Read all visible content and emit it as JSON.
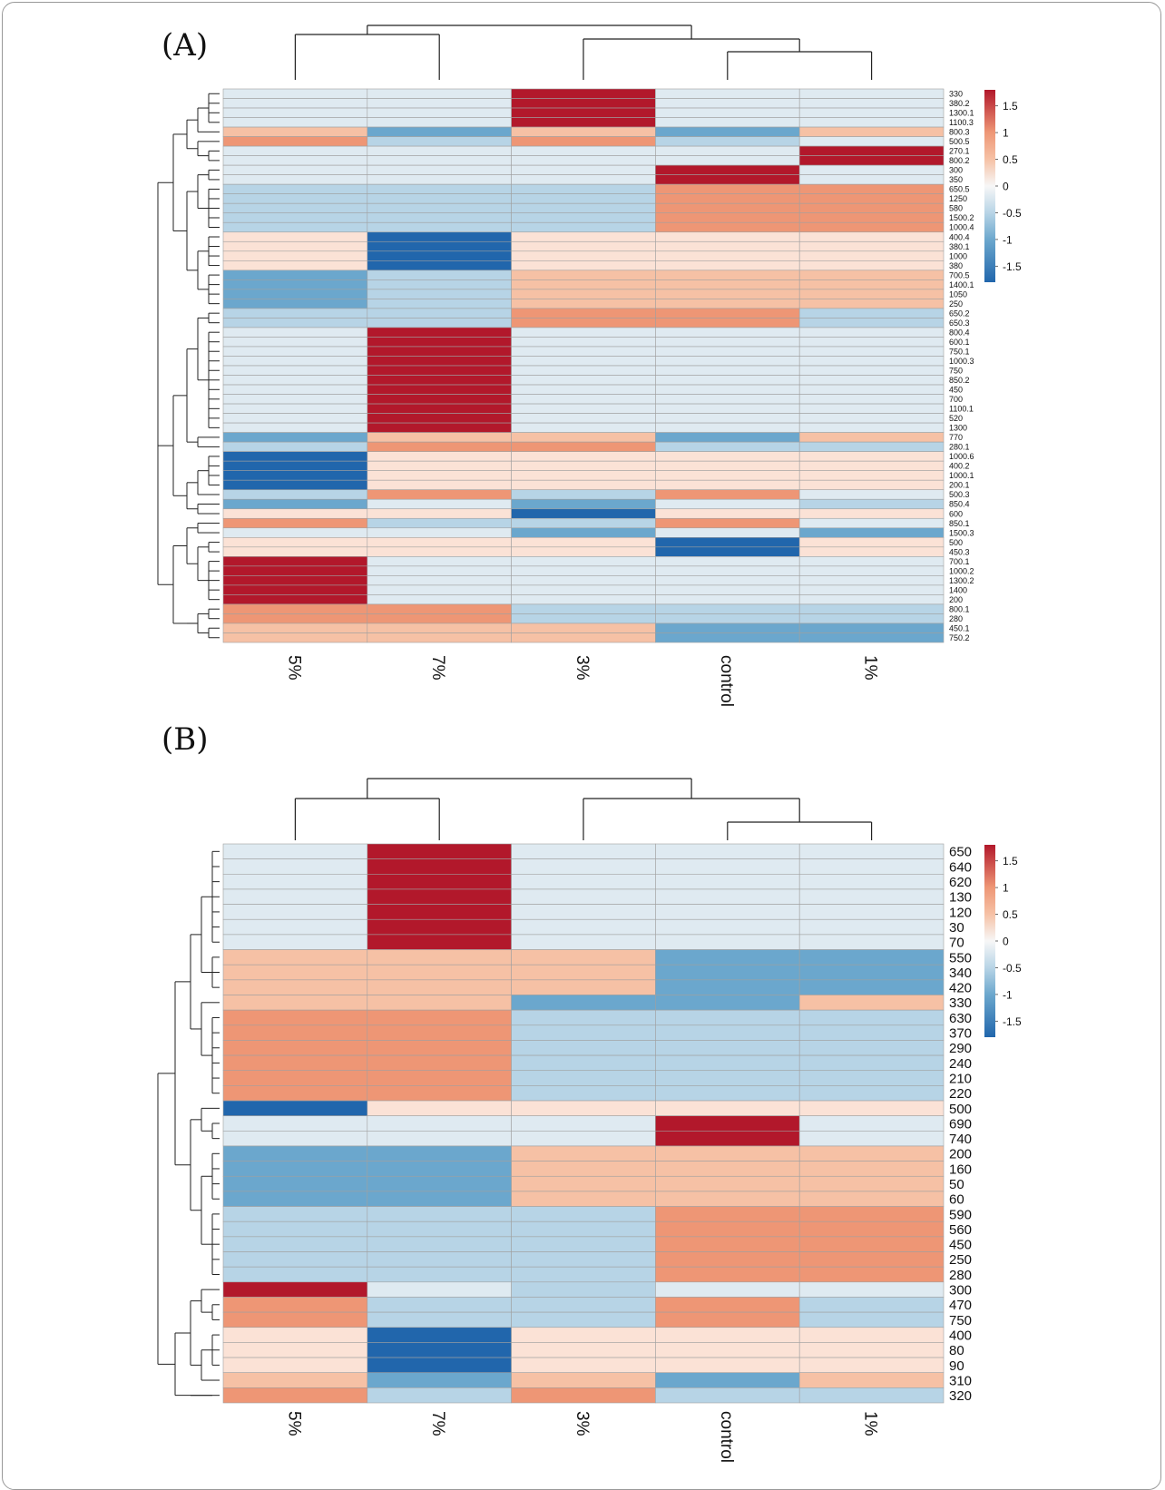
{
  "palette": {
    "-1.5": "#2166ac",
    "-1": "#6ba7cd",
    "-0.5": "#b7d4e6",
    "0": "#dfeaf1",
    "0.3": "#fbe2d6",
    "0.5": "#f6c1a5",
    "1": "#ee9675",
    "1.5": "#b2182b",
    "grid": "#a0a0a0",
    "dendrogram": "#222222"
  },
  "chart_data": [
    {
      "type": "heatmap",
      "panel_label": "(A)",
      "columns": [
        "5%",
        "7%",
        "3%",
        "control",
        "1%"
      ],
      "legend": {
        "ticks": [
          "1.5",
          "1",
          "0.5",
          "0",
          "-0.5",
          "-1",
          "-1.5"
        ],
        "range": [
          -1.8,
          1.8
        ]
      },
      "rows": [
        "330",
        "380.2",
        "1300.1",
        "1100.3",
        "800.3",
        "500.5",
        "270.1",
        "800.2",
        "300",
        "350",
        "650.5",
        "1250",
        "580",
        "1500.2",
        "1000.4",
        "400.4",
        "380.1",
        "1000",
        "380",
        "700.5",
        "1400.1",
        "1050",
        "250",
        "650.2",
        "650.3",
        "800.4",
        "600.1",
        "750.1",
        "1000.3",
        "750",
        "850.2",
        "450",
        "700",
        "1100.1",
        "520",
        "1300",
        "770",
        "280.1",
        "1000.6",
        "400.2",
        "1000.1",
        "200.1",
        "500.3",
        "850.4",
        "600",
        "850.1",
        "1500.3",
        "500",
        "450.3",
        "700.1",
        "1000.2",
        "1300.2",
        "1400",
        "200",
        "800.1",
        "280",
        "450.1",
        "750.2"
      ],
      "values": [
        [
          0,
          0,
          1.5,
          0,
          0
        ],
        [
          0,
          0,
          1.5,
          0,
          0
        ],
        [
          0,
          0,
          1.5,
          0,
          0
        ],
        [
          0,
          0,
          1.5,
          0,
          0
        ],
        [
          0.5,
          -1,
          0.5,
          -1,
          0.5
        ],
        [
          1,
          -0.5,
          1,
          -0.5,
          0
        ],
        [
          0,
          0,
          0,
          0,
          1.5
        ],
        [
          0,
          0,
          0,
          0,
          1.5
        ],
        [
          0,
          0,
          0,
          1.5,
          0
        ],
        [
          0,
          0,
          0,
          1.5,
          0
        ],
        [
          -0.5,
          -0.5,
          -0.5,
          1,
          1
        ],
        [
          -0.5,
          -0.5,
          -0.5,
          1,
          1
        ],
        [
          -0.5,
          -0.5,
          -0.5,
          1,
          1
        ],
        [
          -0.5,
          -0.5,
          -0.5,
          1,
          1
        ],
        [
          -0.5,
          -0.5,
          -0.5,
          1,
          1
        ],
        [
          0.3,
          -1.5,
          0.3,
          0.3,
          0.3
        ],
        [
          0.3,
          -1.5,
          0.3,
          0.3,
          0.3
        ],
        [
          0.3,
          -1.5,
          0.3,
          0.3,
          0.3
        ],
        [
          0.3,
          -1.5,
          0.3,
          0.3,
          0.3
        ],
        [
          -1,
          -0.5,
          0.5,
          0.5,
          0.5
        ],
        [
          -1,
          -0.5,
          0.5,
          0.5,
          0.5
        ],
        [
          -1,
          -0.5,
          0.5,
          0.5,
          0.5
        ],
        [
          -1,
          -0.5,
          0.5,
          0.5,
          0.5
        ],
        [
          -0.5,
          -0.5,
          1,
          1,
          -0.5
        ],
        [
          -0.5,
          -0.5,
          1,
          1,
          -0.5
        ],
        [
          0,
          1.5,
          0,
          0,
          0
        ],
        [
          0,
          1.5,
          0,
          0,
          0
        ],
        [
          0,
          1.5,
          0,
          0,
          0
        ],
        [
          0,
          1.5,
          0,
          0,
          0
        ],
        [
          0,
          1.5,
          0,
          0,
          0
        ],
        [
          0,
          1.5,
          0,
          0,
          0
        ],
        [
          0,
          1.5,
          0,
          0,
          0
        ],
        [
          0,
          1.5,
          0,
          0,
          0
        ],
        [
          0,
          1.5,
          0,
          0,
          0
        ],
        [
          0,
          1.5,
          0,
          0,
          0
        ],
        [
          0,
          1.5,
          0,
          0,
          0
        ],
        [
          -1,
          0.5,
          0.5,
          -1,
          0.5
        ],
        [
          -0.5,
          1,
          1,
          -0.5,
          -0.5
        ],
        [
          -1.5,
          0.3,
          0.3,
          0.3,
          0.3
        ],
        [
          -1.5,
          0.3,
          0.3,
          0.3,
          0.3
        ],
        [
          -1.5,
          0.3,
          0.3,
          0.3,
          0.3
        ],
        [
          -1.5,
          0.3,
          0.3,
          0.3,
          0.3
        ],
        [
          -0.5,
          1,
          -0.5,
          1,
          0
        ],
        [
          -1,
          0,
          -1,
          0,
          -0.5
        ],
        [
          0.3,
          0.3,
          -1.5,
          0.3,
          0.3
        ],
        [
          1,
          -0.5,
          -0.5,
          1,
          0
        ],
        [
          0,
          0,
          -1,
          0,
          -1
        ],
        [
          0.3,
          0.3,
          0.3,
          -1.5,
          0.3
        ],
        [
          0.3,
          0.3,
          0.3,
          -1.5,
          0.3
        ],
        [
          1.5,
          0,
          0,
          0,
          0
        ],
        [
          1.5,
          0,
          0,
          0,
          0
        ],
        [
          1.5,
          0,
          0,
          0,
          0
        ],
        [
          1.5,
          0,
          0,
          0,
          0
        ],
        [
          1.5,
          0,
          0,
          0,
          0
        ],
        [
          1,
          1,
          -0.5,
          -0.5,
          -0.5
        ],
        [
          1,
          1,
          -0.5,
          -0.5,
          -0.5
        ],
        [
          0.5,
          0.5,
          0.5,
          -1,
          -1
        ],
        [
          0.5,
          0.5,
          0.5,
          -1,
          -1
        ]
      ]
    },
    {
      "type": "heatmap",
      "panel_label": "(B)",
      "columns": [
        "5%",
        "7%",
        "3%",
        "control",
        "1%"
      ],
      "legend": {
        "ticks": [
          "1.5",
          "1",
          "0.5",
          "0",
          "-0.5",
          "-1",
          "-1.5"
        ],
        "range": [
          -1.8,
          1.8
        ]
      },
      "rows": [
        "650",
        "640",
        "620",
        "130",
        "120",
        "30",
        "70",
        "550",
        "340",
        "420",
        "330",
        "630",
        "370",
        "290",
        "240",
        "210",
        "220",
        "500",
        "690",
        "740",
        "200",
        "160",
        "50",
        "60",
        "590",
        "560",
        "450",
        "250",
        "280",
        "300",
        "470",
        "750",
        "400",
        "80",
        "90",
        "310",
        "320"
      ],
      "values": [
        [
          0,
          1.5,
          0,
          0,
          0
        ],
        [
          0,
          1.5,
          0,
          0,
          0
        ],
        [
          0,
          1.5,
          0,
          0,
          0
        ],
        [
          0,
          1.5,
          0,
          0,
          0
        ],
        [
          0,
          1.5,
          0,
          0,
          0
        ],
        [
          0,
          1.5,
          0,
          0,
          0
        ],
        [
          0,
          1.5,
          0,
          0,
          0
        ],
        [
          0.5,
          0.5,
          0.5,
          -1,
          -1
        ],
        [
          0.5,
          0.5,
          0.5,
          -1,
          -1
        ],
        [
          0.5,
          0.5,
          0.5,
          -1,
          -1
        ],
        [
          0.5,
          0.5,
          -1,
          -1,
          0.5
        ],
        [
          1,
          1,
          -0.5,
          -0.5,
          -0.5
        ],
        [
          1,
          1,
          -0.5,
          -0.5,
          -0.5
        ],
        [
          1,
          1,
          -0.5,
          -0.5,
          -0.5
        ],
        [
          1,
          1,
          -0.5,
          -0.5,
          -0.5
        ],
        [
          1,
          1,
          -0.5,
          -0.5,
          -0.5
        ],
        [
          1,
          1,
          -0.5,
          -0.5,
          -0.5
        ],
        [
          -1.5,
          0.3,
          0.3,
          0.3,
          0.3
        ],
        [
          0,
          0,
          0,
          1.5,
          0
        ],
        [
          0,
          0,
          0,
          1.5,
          0
        ],
        [
          -1,
          -1,
          0.5,
          0.5,
          0.5
        ],
        [
          -1,
          -1,
          0.5,
          0.5,
          0.5
        ],
        [
          -1,
          -1,
          0.5,
          0.5,
          0.5
        ],
        [
          -1,
          -1,
          0.5,
          0.5,
          0.5
        ],
        [
          -0.5,
          -0.5,
          -0.5,
          1,
          1
        ],
        [
          -0.5,
          -0.5,
          -0.5,
          1,
          1
        ],
        [
          -0.5,
          -0.5,
          -0.5,
          1,
          1
        ],
        [
          -0.5,
          -0.5,
          -0.5,
          1,
          1
        ],
        [
          -0.5,
          -0.5,
          -0.5,
          1,
          1
        ],
        [
          1.5,
          0,
          -0.5,
          0,
          0
        ],
        [
          1,
          -0.5,
          -0.5,
          1,
          -0.5
        ],
        [
          1,
          -0.5,
          -0.5,
          1,
          -0.5
        ],
        [
          0.3,
          -1.5,
          0.3,
          0.3,
          0.3
        ],
        [
          0.3,
          -1.5,
          0.3,
          0.3,
          0.3
        ],
        [
          0.3,
          -1.5,
          0.3,
          0.3,
          0.3
        ],
        [
          0.5,
          -1,
          0.5,
          -1,
          0.5
        ],
        [
          1,
          -0.5,
          1,
          -0.5,
          -0.5
        ]
      ]
    }
  ]
}
